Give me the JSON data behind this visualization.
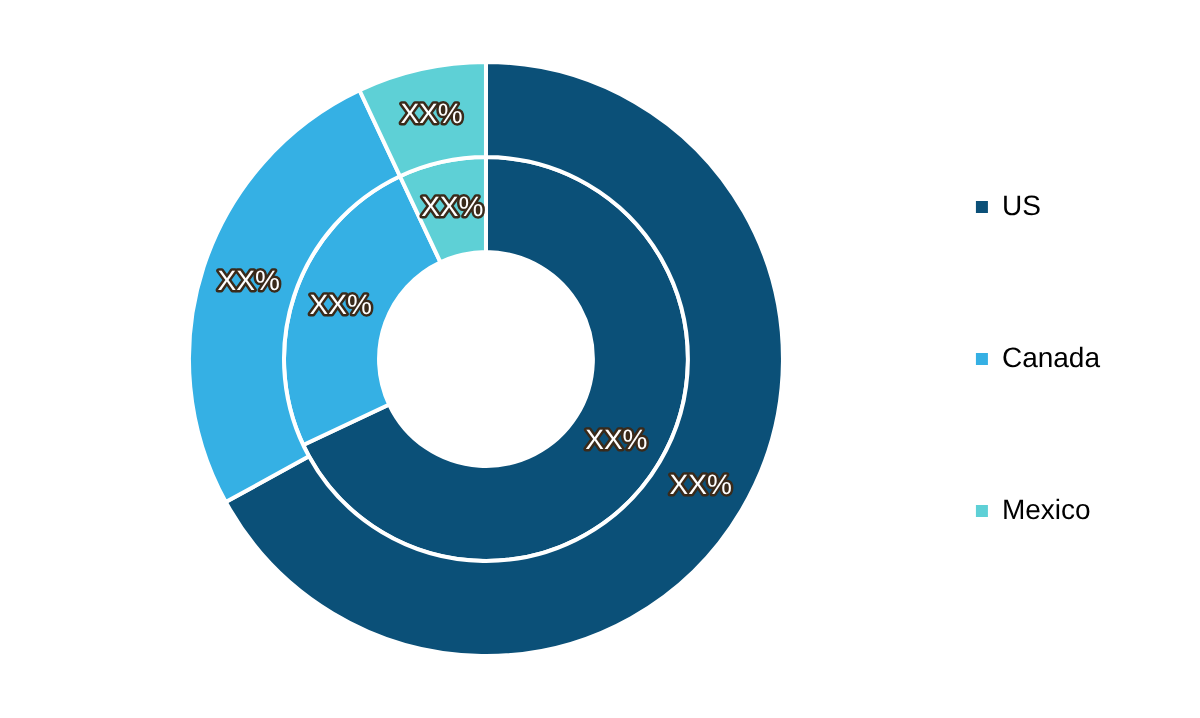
{
  "chart_data": {
    "type": "donut",
    "categories": [
      "US",
      "Canada",
      "Mexico"
    ],
    "colors": [
      "#0b5078",
      "#35b0e4",
      "#5ed0d6"
    ],
    "legend": "right",
    "series": [
      {
        "values": [
          67,
          26,
          7
        ],
        "value_labels": [
          "XX%",
          "XX%",
          "XX%"
        ]
      },
      {
        "values": [
          68,
          25,
          7
        ],
        "value_labels": [
          "XX%",
          "XX%",
          "XX%"
        ]
      }
    ]
  }
}
